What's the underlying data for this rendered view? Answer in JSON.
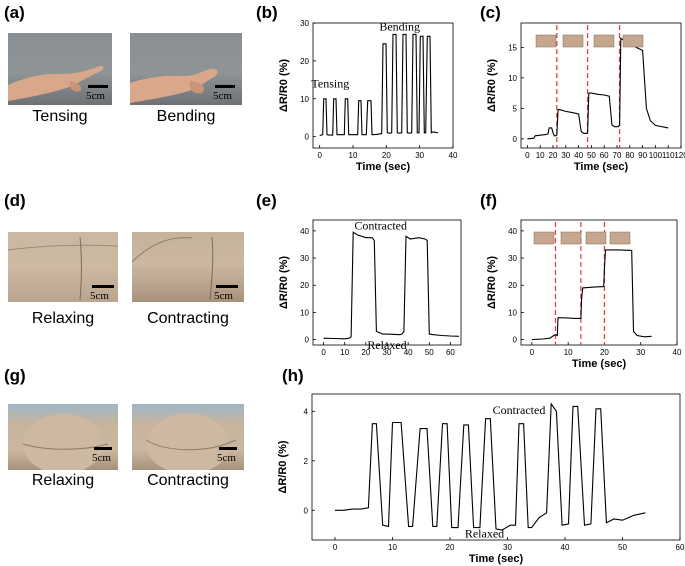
{
  "panels": [
    {
      "id": "a",
      "letter": "(a)"
    },
    {
      "id": "b",
      "letter": "(b)"
    },
    {
      "id": "c",
      "letter": "(c)"
    },
    {
      "id": "d",
      "letter": "(d)"
    },
    {
      "id": "e",
      "letter": "(e)"
    },
    {
      "id": "f",
      "letter": "(f)"
    },
    {
      "id": "g",
      "letter": "(g)"
    },
    {
      "id": "h",
      "letter": "(h)"
    }
  ],
  "photos": {
    "a": {
      "left_caption": "Tensing",
      "right_caption": "Bending",
      "scale": "5cm"
    },
    "d": {
      "left_caption": "Relaxing",
      "right_caption": "Contracting",
      "scale": "5cm"
    },
    "g": {
      "left_caption": "Relaxing",
      "right_caption": "Contracting",
      "scale": "5cm"
    }
  },
  "colors": {
    "line": "#000000",
    "marker_line": "#e8333a",
    "photo_bg": "#8d9398",
    "skin": "#d9a88a"
  },
  "chart_data": [
    {
      "panel": "b",
      "type": "line",
      "xlabel": "Time (sec)",
      "ylabel": "ΔR/R0 (%)",
      "xlim": [
        -2,
        40
      ],
      "ylim": [
        -3,
        30
      ],
      "xticks": [
        0,
        10,
        20,
        30,
        40
      ],
      "yticks": [
        0,
        10,
        20,
        30
      ],
      "annotations": [
        {
          "text": "Tensing",
          "x": 3.2,
          "y": 13
        },
        {
          "text": "Bending",
          "x": 24,
          "y": 28
        }
      ],
      "pulses": [
        {
          "t": 1.5,
          "h": 10
        },
        {
          "t": 4.5,
          "h": 10
        },
        {
          "t": 8,
          "h": 10
        },
        {
          "t": 12,
          "h": 9.5
        },
        {
          "t": 15,
          "h": 9.5
        },
        {
          "t": 19.5,
          "h": 24.5
        },
        {
          "t": 22.5,
          "h": 27
        },
        {
          "t": 25.5,
          "h": 27
        },
        {
          "t": 28.5,
          "h": 27
        },
        {
          "t": 31,
          "h": 26.5
        },
        {
          "t": 33.5,
          "h": 26.5
        }
      ],
      "x": [
        0,
        0.9,
        1.2,
        1.5,
        1.9,
        2.2,
        2.8,
        3.9,
        4.2,
        4.5,
        4.9,
        5.2,
        6.0,
        7.4,
        7.7,
        8.0,
        8.4,
        8.7,
        10.0,
        11.4,
        11.7,
        12.0,
        12.4,
        12.7,
        14.0,
        14.4,
        14.7,
        15.0,
        15.4,
        15.7,
        17.0,
        18.6,
        19.0,
        19.5,
        19.9,
        20.3,
        21.0,
        21.6,
        22.0,
        22.5,
        22.9,
        23.3,
        24.0,
        24.6,
        25.0,
        25.5,
        25.9,
        26.3,
        27.0,
        27.6,
        28.0,
        28.5,
        28.9,
        29.3,
        29.8,
        30.2,
        30.6,
        31.0,
        31.4,
        31.8,
        32.3,
        32.7,
        33.1,
        33.5,
        33.9,
        34.3,
        35.5
      ],
      "y": [
        0.3,
        0.5,
        10,
        10,
        10,
        0.5,
        0.4,
        0.4,
        10,
        10,
        10,
        0.5,
        0.5,
        0.5,
        10,
        10,
        10,
        0.5,
        0.5,
        0.5,
        9.5,
        9.5,
        9.5,
        0.5,
        0.5,
        9.5,
        9.5,
        9.5,
        9.5,
        0.5,
        0.6,
        0.8,
        24.5,
        24.5,
        24.5,
        1.0,
        0.9,
        1.0,
        27,
        27,
        27,
        1.0,
        0.9,
        1.0,
        27,
        27,
        27,
        1.0,
        0.9,
        1.0,
        27,
        27,
        27,
        1.0,
        1.0,
        26.5,
        26.5,
        26.5,
        1.0,
        1.0,
        26.5,
        26.5,
        26.5,
        1.0,
        1.2,
        1.2,
        1.0
      ]
    },
    {
      "panel": "c",
      "type": "line",
      "xlabel": "Time (sec)",
      "ylabel": "ΔR/R0 (%)",
      "xlim": [
        -5,
        120
      ],
      "ylim": [
        -1.5,
        19
      ],
      "xticks": [
        0,
        10,
        20,
        30,
        40,
        50,
        60,
        70,
        80,
        90,
        100,
        110,
        120
      ],
      "yticks": [
        0,
        5,
        10,
        15
      ],
      "markers": [
        23,
        47,
        72
      ],
      "x": [
        0,
        5,
        6,
        10,
        14,
        16,
        17,
        19,
        20,
        21,
        22,
        23,
        24,
        25,
        30,
        35,
        40,
        42,
        44,
        46,
        47,
        48,
        50,
        55,
        60,
        64,
        66,
        68,
        70,
        71,
        72,
        73,
        75,
        80,
        85,
        90,
        93,
        96,
        100,
        110
      ],
      "y": [
        0.0,
        0.1,
        0.5,
        0.6,
        0.7,
        0.8,
        1.8,
        1.8,
        1.0,
        0.5,
        0.5,
        0.6,
        4.8,
        4.8,
        4.5,
        4.3,
        4.1,
        1.2,
        0.9,
        0.9,
        1.0,
        7.5,
        7.5,
        7.3,
        7.2,
        7.0,
        2.3,
        2.0,
        2.0,
        2.0,
        2.3,
        16.5,
        16.2,
        15.8,
        15.0,
        14.5,
        5.0,
        3.0,
        2.2,
        1.8
      ]
    },
    {
      "panel": "e",
      "type": "line",
      "xlabel": "",
      "ylabel": "ΔR/R0 (%)",
      "xlim": [
        -5,
        65
      ],
      "ylim": [
        -2,
        44
      ],
      "xticks": [
        0,
        10,
        20,
        30,
        40,
        50,
        60
      ],
      "yticks": [
        0,
        10,
        20,
        30,
        40
      ],
      "annotations": [
        {
          "text": "Contracted",
          "x": 27,
          "y": 40.5
        },
        {
          "text": "Relaxed",
          "x": 30,
          "y": -3.5
        }
      ],
      "x": [
        0,
        5,
        10,
        12,
        13,
        14,
        16,
        20,
        23,
        24,
        25,
        28,
        30,
        34,
        36,
        37,
        38,
        39,
        41,
        45,
        48,
        49,
        50,
        52,
        56,
        60,
        64
      ],
      "y": [
        0.5,
        0.4,
        0.3,
        0.5,
        1.0,
        39.5,
        38.5,
        37.5,
        37.5,
        36.5,
        3.0,
        2.0,
        2.0,
        1.9,
        1.8,
        2.0,
        3.0,
        38.0,
        37.0,
        37.5,
        37.0,
        36.5,
        2.0,
        1.8,
        1.5,
        1.3,
        1.2
      ]
    },
    {
      "panel": "f",
      "type": "line",
      "xlabel": "Time (sec)",
      "ylabel": "ΔR/R0 (%)",
      "xlim": [
        -3,
        40
      ],
      "ylim": [
        -2,
        44
      ],
      "xticks": [
        0,
        10,
        20,
        30,
        40
      ],
      "yticks": [
        0,
        10,
        20,
        30,
        40
      ],
      "markers": [
        6.5,
        13.5,
        20
      ],
      "x": [
        0,
        3,
        5,
        6,
        6.5,
        7,
        7.2,
        9,
        12,
        13.5,
        13.7,
        14,
        17,
        19.8,
        20,
        20.3,
        24,
        27.5,
        28,
        29,
        31,
        33
      ],
      "y": [
        0,
        0.2,
        0.5,
        1.5,
        1.8,
        1.5,
        8.0,
        8.0,
        7.8,
        7.8,
        15.0,
        19.0,
        19.3,
        19.5,
        26.0,
        33.0,
        33.0,
        32.8,
        3.0,
        1.5,
        1.0,
        1.2
      ]
    },
    {
      "panel": "h",
      "type": "line",
      "xlabel": "Time (sec)",
      "ylabel": "ΔR/R0 (%)",
      "xlim": [
        -4,
        60
      ],
      "ylim": [
        -1.2,
        4.7
      ],
      "xticks": [
        0,
        10,
        20,
        30,
        40,
        50,
        60
      ],
      "yticks": [
        0,
        2,
        4
      ],
      "annotations": [
        {
          "text": "Contracted",
          "x": 32,
          "y": 3.9
        },
        {
          "text": "Relaxed",
          "x": 26,
          "y": -1.1
        }
      ],
      "x": [
        0,
        1.5,
        3,
        4.5,
        5.8,
        6.5,
        7.2,
        8.3,
        9.3,
        10,
        11.5,
        12.8,
        13.5,
        14.8,
        16,
        17,
        17.7,
        18.7,
        19.5,
        20.3,
        21.4,
        22.4,
        23.2,
        24.1,
        25.2,
        26.2,
        27,
        28,
        29,
        30.5,
        31.4,
        32,
        32.8,
        33.6,
        34.2,
        35.5,
        36.8,
        37.6,
        38.5,
        39.5,
        40.6,
        41.4,
        42.2,
        43.4,
        44.5,
        45.4,
        46.2,
        47.2,
        48.5,
        50,
        52,
        54
      ],
      "y": [
        0,
        0,
        0.05,
        0.05,
        0.1,
        3.5,
        3.5,
        -0.6,
        -0.65,
        3.55,
        3.55,
        -0.65,
        -0.65,
        3.3,
        3.3,
        -0.65,
        -0.65,
        3.5,
        3.5,
        -0.7,
        -0.7,
        3.45,
        3.45,
        -0.7,
        -0.7,
        3.7,
        3.7,
        -0.75,
        -0.8,
        -0.6,
        -0.6,
        3.5,
        3.5,
        -0.7,
        -0.7,
        -0.3,
        -0.1,
        4.3,
        4.0,
        -0.6,
        -0.55,
        4.2,
        4.2,
        -0.6,
        -0.55,
        4.1,
        4.1,
        -0.5,
        -0.35,
        -0.4,
        -0.2,
        -0.1
      ]
    }
  ]
}
